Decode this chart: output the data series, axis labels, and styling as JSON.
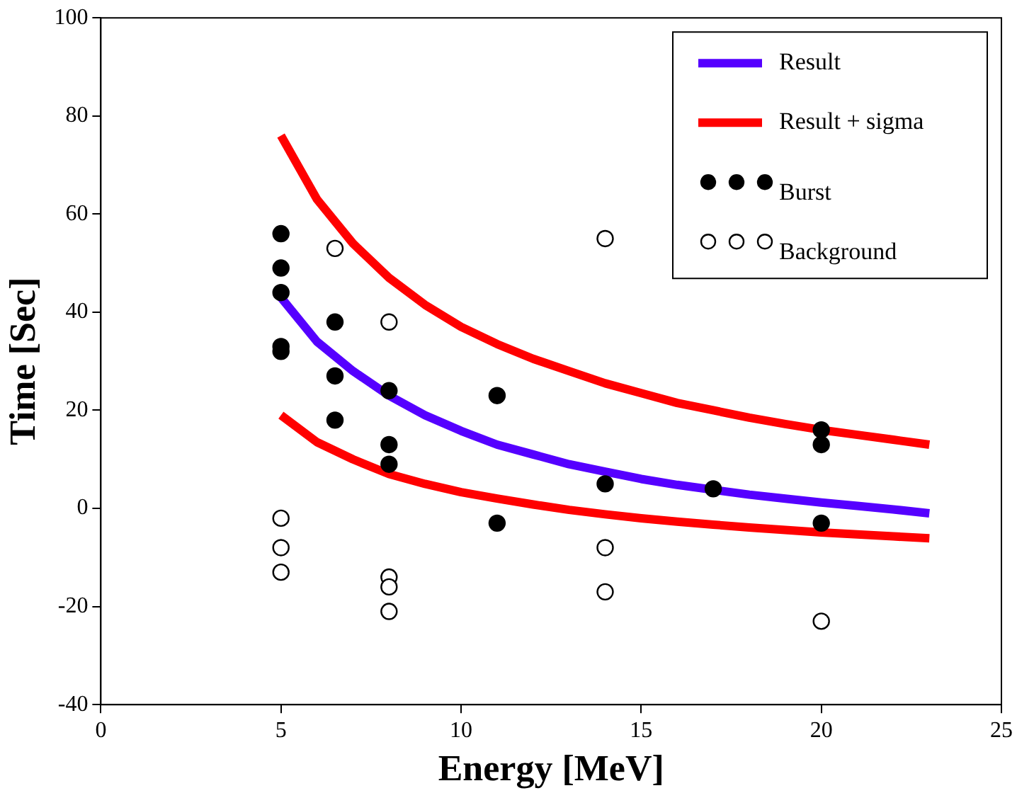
{
  "chart_data": {
    "type": "line",
    "xlabel": "Energy [MeV]",
    "ylabel": "Time [Sec]",
    "xlim": [
      0,
      25
    ],
    "xticks": [
      0,
      5,
      10,
      15,
      20,
      25
    ],
    "ylim": [
      -40,
      100
    ],
    "yticks": [
      -40,
      -20,
      0,
      20,
      40,
      60,
      80,
      100
    ],
    "grid": false,
    "legend": "top right",
    "line_style": "solid",
    "series": [
      {
        "name": "Result",
        "marker": "none",
        "color": "#5500ff",
        "x": [
          5,
          6,
          7,
          8,
          9,
          10,
          11,
          12,
          13,
          14,
          15,
          16,
          17,
          18,
          19,
          20,
          21,
          22,
          23
        ],
        "values": [
          43,
          34,
          28,
          23,
          19,
          15.8,
          13,
          11,
          9,
          7.5,
          6,
          4.8,
          3.8,
          2.8,
          2,
          1.2,
          0.5,
          -0.2,
          -1
        ]
      },
      {
        "name": "Result + sigma",
        "marker": "none",
        "color": "#ff0000",
        "x": [
          5,
          6,
          7,
          8,
          9,
          10,
          11,
          12,
          13,
          14,
          15,
          16,
          17,
          18,
          19,
          20,
          21,
          22,
          23
        ],
        "values": [
          76,
          63,
          54,
          47,
          41.5,
          37,
          33.5,
          30.5,
          28,
          25.5,
          23.5,
          21.5,
          20,
          18.5,
          17.2,
          16,
          15,
          14,
          13
        ]
      },
      {
        "marker": "none",
        "color": "#ff0000",
        "x": [
          5,
          6,
          7,
          8,
          9,
          10,
          11,
          12,
          13,
          14,
          15,
          16,
          17,
          18,
          19,
          20,
          21,
          22,
          23
        ],
        "values": [
          19,
          13.5,
          10,
          7,
          5,
          3.3,
          2,
          0.8,
          -0.3,
          -1.2,
          -2,
          -2.7,
          -3.3,
          -3.9,
          -4.4,
          -4.9,
          -5.3,
          -5.7,
          -6.1
        ]
      },
      {
        "name": "Burst",
        "type": "scatter",
        "marker": "circle",
        "color": "#000000",
        "x": [
          5,
          5,
          5,
          5,
          5,
          6.5,
          6.5,
          6.5,
          8,
          8,
          8,
          11,
          11,
          14,
          17,
          20,
          20,
          20
        ],
        "values": [
          56,
          49,
          44,
          33,
          32,
          38,
          27,
          18,
          24,
          13,
          9,
          23,
          -3,
          5,
          4,
          16,
          13,
          -3
        ]
      },
      {
        "name": "Background",
        "type": "scatter",
        "marker": "circle",
        "color": "#ffffff",
        "x": [
          5,
          5,
          5,
          6.5,
          8,
          8,
          8,
          8,
          14,
          14,
          14,
          20
        ],
        "values": [
          -2,
          -8,
          -13,
          53,
          38,
          -14,
          -16,
          -21,
          55,
          -8,
          -17,
          -23
        ]
      }
    ]
  }
}
